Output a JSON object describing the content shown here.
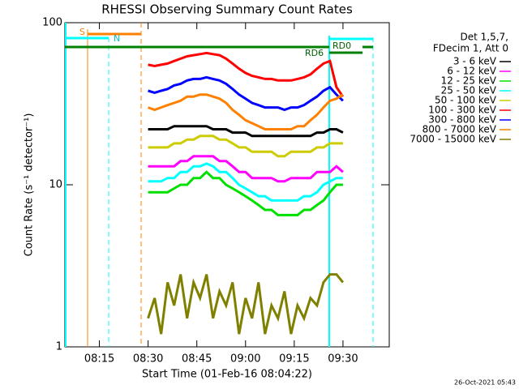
{
  "chart_data": {
    "type": "line",
    "title": "RHESSI Observing Summary Count Rates",
    "x_label": "Start Time (01-Feb-16 08:04:22)",
    "y_label": "Count Rate (s⁻¹ detector⁻¹)",
    "legend_header": [
      "Det 1,5,7,",
      "FDecim 1, Att 0"
    ],
    "annotations": [
      "S",
      "N",
      "RD6",
      "RD0"
    ],
    "footer": "26-Oct-2021 05:43",
    "log_y": true,
    "xlim": [
      4.37,
      104.25
    ],
    "xticks": [
      {
        "value": 15,
        "label": "08:15"
      },
      {
        "value": 30,
        "label": "08:30"
      },
      {
        "value": 45,
        "label": "08:45"
      },
      {
        "value": 60,
        "label": "09:00"
      },
      {
        "value": 75,
        "label": "09:15"
      },
      {
        "value": 90,
        "label": "09:30"
      }
    ],
    "ylim": [
      1,
      100
    ],
    "yticks": [
      1,
      10,
      100
    ],
    "x": [
      30,
      32,
      34,
      36,
      38,
      40,
      42,
      44,
      46,
      48,
      50,
      52,
      54,
      56,
      58,
      60,
      62,
      64,
      66,
      68,
      70,
      72,
      74,
      76,
      78,
      80,
      82,
      84,
      86,
      88,
      90
    ],
    "series": [
      {
        "name": "3 - 6 keV",
        "color": "#000000",
        "values": [
          22,
          22,
          22,
          22,
          23,
          23,
          23,
          23,
          23,
          23,
          22,
          22,
          22,
          21,
          21,
          21,
          20,
          20,
          20,
          20,
          20,
          20,
          20,
          20,
          20,
          20,
          21,
          21,
          22,
          22,
          21
        ]
      },
      {
        "name": "6 - 12 keV",
        "color": "#ff00ff",
        "values": [
          13,
          13,
          13,
          13,
          13,
          14,
          14,
          15,
          15,
          15,
          15,
          14,
          14,
          13,
          12,
          12,
          11,
          11,
          11,
          11,
          10.5,
          10.5,
          11,
          11,
          11,
          11,
          12,
          12,
          12,
          13,
          12
        ]
      },
      {
        "name": "12 - 25 keV",
        "color": "#00e000",
        "values": [
          9,
          9,
          9,
          9,
          9.5,
          10,
          10,
          11,
          11,
          12,
          11,
          11,
          10,
          9.5,
          9,
          8.5,
          8,
          7.5,
          7,
          7,
          6.5,
          6.5,
          6.5,
          6.5,
          7,
          7,
          7.5,
          8,
          9,
          10,
          10
        ]
      },
      {
        "name": "25 - 50 keV",
        "color": "#00ffff",
        "values": [
          10.5,
          10.5,
          10.5,
          11,
          11,
          12,
          12,
          13,
          13,
          13.5,
          13,
          12,
          12,
          11,
          10,
          9.5,
          9,
          8.5,
          8.5,
          8,
          8,
          8,
          8,
          8,
          8.5,
          8.5,
          9,
          10,
          10.5,
          11,
          11
        ]
      },
      {
        "name": "50 - 100 keV",
        "color": "#cccc00",
        "values": [
          17,
          17,
          17,
          17,
          18,
          18,
          19,
          19,
          20,
          20,
          20,
          19,
          19,
          18,
          17,
          17,
          16,
          16,
          16,
          16,
          15,
          15,
          16,
          16,
          16,
          16,
          17,
          17,
          18,
          18,
          18
        ]
      },
      {
        "name": "100 - 300 keV",
        "color": "#ff0000",
        "values": [
          55,
          54,
          55,
          56,
          58,
          60,
          62,
          63,
          64,
          65,
          64,
          63,
          60,
          56,
          52,
          49,
          47,
          46,
          45,
          45,
          44,
          44,
          44,
          45,
          46,
          48,
          52,
          56,
          58,
          40,
          35
        ]
      },
      {
        "name": "300 - 800 keV",
        "color": "#0000ff",
        "values": [
          38,
          37,
          38,
          39,
          41,
          42,
          44,
          45,
          45,
          46,
          45,
          44,
          42,
          39,
          36,
          34,
          32,
          31,
          30,
          30,
          30,
          29,
          30,
          30,
          31,
          33,
          35,
          38,
          40,
          36,
          33
        ]
      },
      {
        "name": "800 - 7000 keV",
        "color": "#ff8000",
        "values": [
          30,
          29,
          30,
          31,
          32,
          33,
          35,
          35,
          36,
          36,
          35,
          34,
          32,
          29,
          27,
          25,
          24,
          23,
          22,
          22,
          22,
          22,
          22,
          23,
          23,
          25,
          27,
          30,
          33,
          34,
          36
        ]
      },
      {
        "name": "7000 - 15000 keV",
        "color": "#808000",
        "values": [
          1.5,
          2,
          1.2,
          2.5,
          1.8,
          2.8,
          1.5,
          2.5,
          2,
          2.8,
          1.5,
          2.2,
          1.8,
          2.5,
          1.2,
          2,
          1.5,
          2.5,
          1.2,
          1.8,
          1.5,
          2.2,
          1.2,
          1.8,
          1.5,
          2,
          1.8,
          2.5,
          2.8,
          2.8,
          2.5
        ]
      }
    ]
  }
}
